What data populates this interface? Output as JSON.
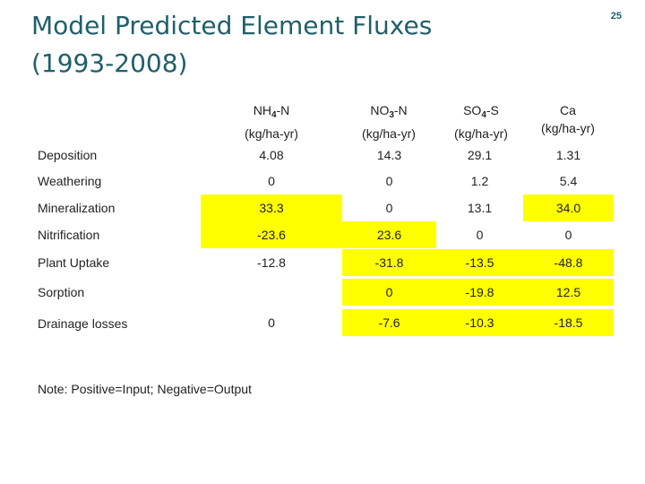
{
  "title_line1": "Model Predicted Element Fluxes",
  "title_line2": "(1993-2008)",
  "page_number": "25",
  "columns": [
    {
      "pre": "NH",
      "sub": "4",
      "post": "-N",
      "unit": "(kg/ha-yr)"
    },
    {
      "pre": "NO",
      "sub": "3",
      "post": "-N",
      "unit": "(kg/ha-yr)"
    },
    {
      "pre": "SO",
      "sub": "4",
      "post": "-S",
      "unit": "(kg/ha-yr)"
    },
    {
      "pre": "Ca",
      "sub": "",
      "post": "",
      "unit": "(kg/ha-yr)"
    }
  ],
  "rows": [
    {
      "label": "Deposition",
      "values": [
        "4.08",
        "14.3",
        "29.1",
        "1.31"
      ],
      "highlight": [
        false,
        false,
        false,
        false
      ]
    },
    {
      "label": "Weathering",
      "values": [
        "0",
        "0",
        "1.2",
        "5.4"
      ],
      "highlight": [
        false,
        false,
        false,
        false
      ]
    },
    {
      "label": "Mineralization",
      "values": [
        "33.3",
        "0",
        "13.1",
        "34.0"
      ],
      "highlight": [
        true,
        false,
        false,
        true
      ]
    },
    {
      "label": "Nitrification",
      "values": [
        "-23.6",
        "23.6",
        "0",
        "0"
      ],
      "highlight": [
        true,
        true,
        false,
        false
      ]
    },
    {
      "label": "Plant Uptake",
      "values": [
        "-12.8",
        "-31.8",
        "-13.5",
        "-48.8"
      ],
      "highlight": [
        false,
        true,
        true,
        true
      ]
    },
    {
      "label": "Sorption",
      "values": [
        "",
        "0",
        "-19.8",
        "12.5"
      ],
      "highlight": [
        false,
        true,
        true,
        true
      ]
    },
    {
      "label": "Drainage losses",
      "values": [
        "0",
        "-7.6",
        "-10.3",
        "-18.5"
      ],
      "highlight": [
        false,
        true,
        true,
        true
      ]
    }
  ],
  "note": "Note: Positive=Input; Negative=Output",
  "highlight_color": "#ffff00",
  "title_color": "#1f5f6b"
}
